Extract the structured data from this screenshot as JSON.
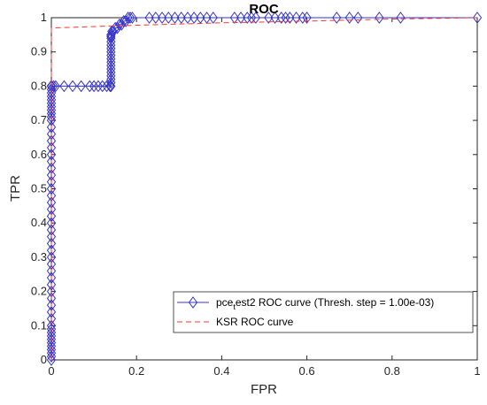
{
  "chart_data": {
    "type": "line",
    "title": "ROC",
    "xlabel": "FPR",
    "ylabel": "TPR",
    "xlim": [
      0,
      1
    ],
    "ylim": [
      0,
      1
    ],
    "xticks": [
      "0",
      "0.2",
      "0.4",
      "0.6",
      "0.8",
      "1"
    ],
    "yticks": [
      "0",
      "0.1",
      "0.2",
      "0.3",
      "0.4",
      "0.5",
      "0.6",
      "0.7",
      "0.8",
      "0.9",
      "1"
    ],
    "grid": false,
    "legend_position": "bottom-right",
    "series": [
      {
        "name": "pce_test2 ROC curve (Thresh. step = 1.00e-03)",
        "legend_main": "pce",
        "legend_sub": "t",
        "legend_rest": "est2 ROC curve (Thresh. step = 1.00e-03)",
        "color": "#3333cc",
        "marker": "diamond",
        "style": "solid",
        "x": [
          0,
          0,
          0,
          0,
          0,
          0,
          0,
          0,
          0,
          0,
          0,
          0,
          0,
          0,
          0,
          0,
          0,
          0,
          0,
          0,
          0,
          0,
          0,
          0,
          0,
          0,
          0,
          0,
          0,
          0,
          0,
          0,
          0,
          0,
          0,
          0,
          0,
          0,
          0,
          0,
          0,
          0,
          0,
          0,
          0,
          0,
          0,
          0,
          0,
          0,
          0,
          0,
          0,
          0,
          0,
          0,
          0.005,
          0.01,
          0.03,
          0.05,
          0.07,
          0.09,
          0.1,
          0.11,
          0.12,
          0.13,
          0.138,
          0.14,
          0.14,
          0.14,
          0.14,
          0.14,
          0.14,
          0.14,
          0.14,
          0.14,
          0.14,
          0.14,
          0.14,
          0.14,
          0.14,
          0.14,
          0.14,
          0.14,
          0.14,
          0.142,
          0.145,
          0.15,
          0.155,
          0.16,
          0.165,
          0.17,
          0.175,
          0.18,
          0.185,
          0.19,
          0.23,
          0.245,
          0.26,
          0.275,
          0.29,
          0.305,
          0.32,
          0.335,
          0.35,
          0.365,
          0.38,
          0.43,
          0.445,
          0.46,
          0.47,
          0.48,
          0.51,
          0.525,
          0.54,
          0.55,
          0.56,
          0.575,
          0.59,
          0.6,
          0.67,
          0.7,
          0.72,
          0.77,
          0.82,
          1
        ],
        "y": [
          0,
          0.01,
          0.02,
          0.03,
          0.04,
          0.05,
          0.06,
          0.07,
          0.08,
          0.09,
          0.1,
          0.12,
          0.14,
          0.16,
          0.18,
          0.2,
          0.22,
          0.24,
          0.26,
          0.28,
          0.3,
          0.32,
          0.34,
          0.36,
          0.38,
          0.4,
          0.42,
          0.44,
          0.46,
          0.48,
          0.5,
          0.52,
          0.54,
          0.56,
          0.58,
          0.6,
          0.62,
          0.64,
          0.66,
          0.68,
          0.7,
          0.71,
          0.72,
          0.73,
          0.74,
          0.75,
          0.76,
          0.77,
          0.78,
          0.79,
          0.8,
          0.8,
          0.8,
          0.8,
          0.8,
          0.8,
          0.8,
          0.8,
          0.8,
          0.8,
          0.8,
          0.8,
          0.8,
          0.8,
          0.8,
          0.8,
          0.8,
          0.8,
          0.81,
          0.82,
          0.83,
          0.84,
          0.85,
          0.86,
          0.87,
          0.88,
          0.89,
          0.9,
          0.91,
          0.92,
          0.93,
          0.94,
          0.945,
          0.95,
          0.95,
          0.96,
          0.96,
          0.97,
          0.97,
          0.98,
          0.98,
          0.99,
          0.99,
          1,
          1,
          1,
          1,
          1,
          1,
          1,
          1,
          1,
          1,
          1,
          1,
          1,
          1,
          1,
          1,
          1,
          1,
          1,
          1,
          1,
          1,
          1,
          1,
          1,
          1,
          1,
          1,
          1,
          1,
          1,
          1,
          1
        ]
      },
      {
        "name": "KSR ROC curve",
        "color": "#ff3333",
        "marker": "none",
        "style": "dashed",
        "x": [
          0,
          0,
          0.2,
          0.4,
          0.6,
          0.8,
          1
        ],
        "y": [
          0,
          0.97,
          0.978,
          0.985,
          0.99,
          0.996,
          1
        ]
      }
    ]
  }
}
